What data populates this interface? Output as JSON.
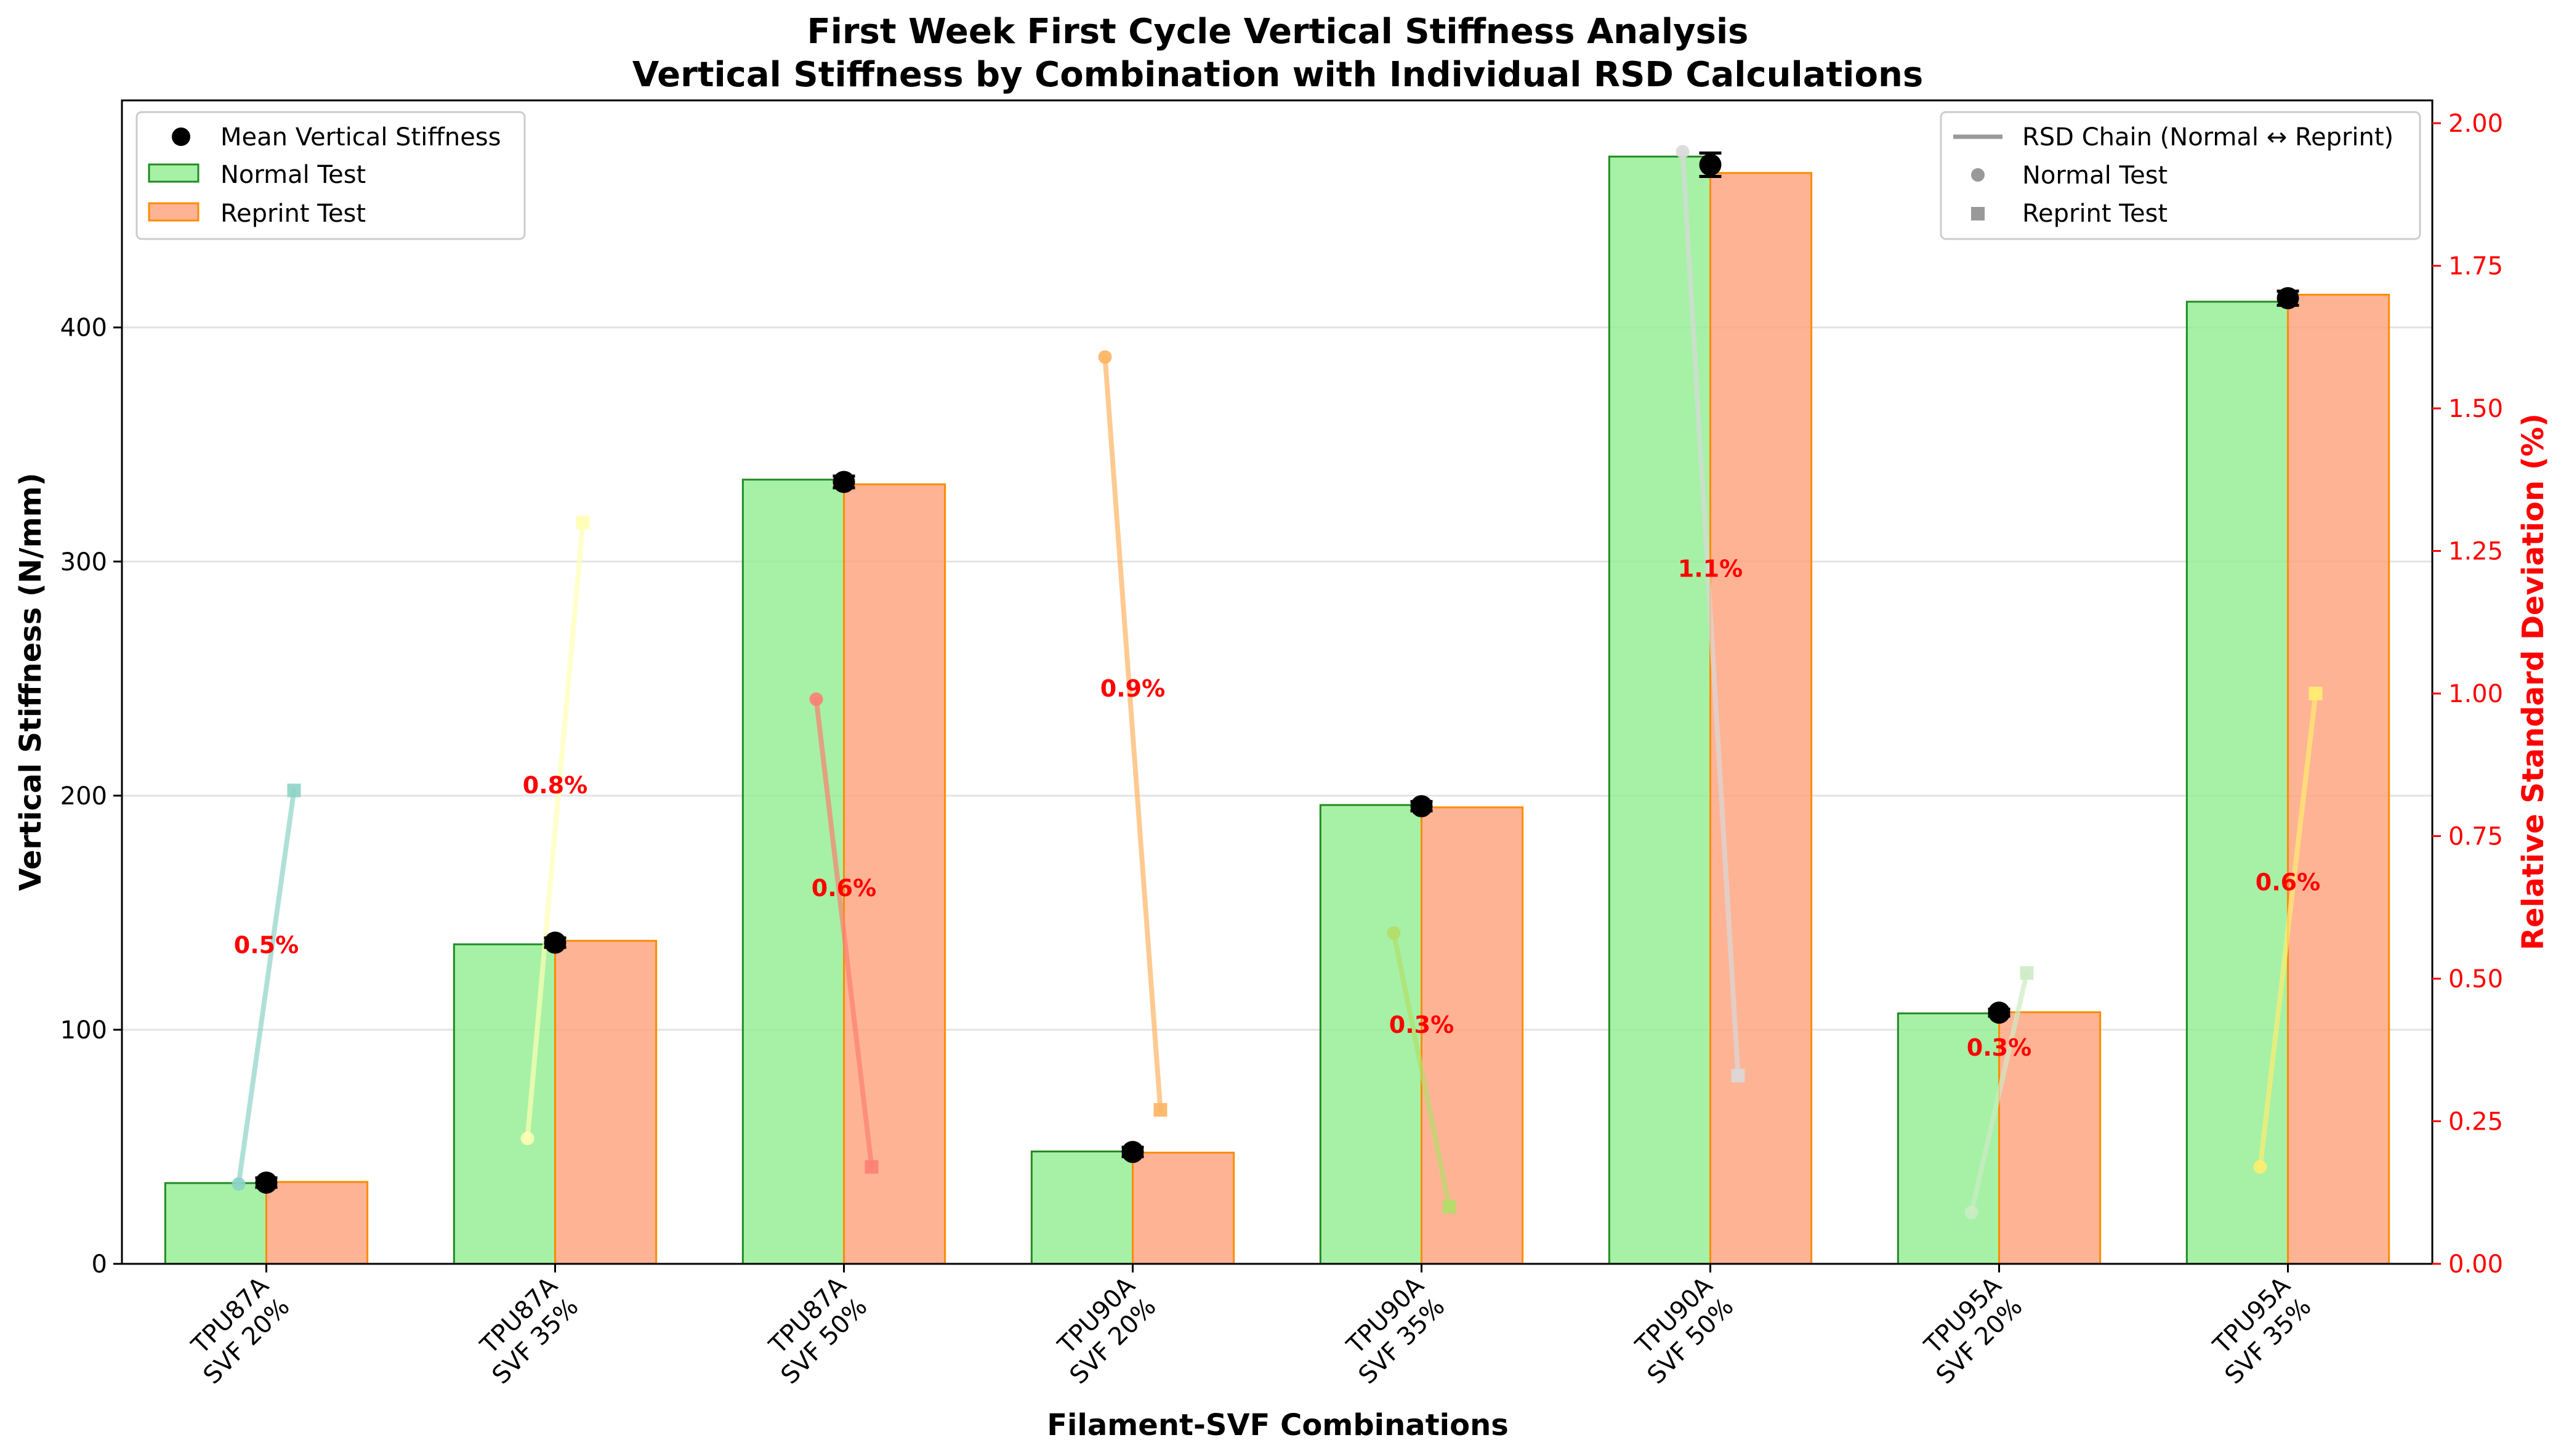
{
  "chart_data": {
    "type": "bar",
    "title": "First Week First Cycle Vertical Stiffness Analysis",
    "subtitle": "Vertical Stiffness by Combination with Individual RSD Calculations",
    "xlabel": "Filament-SVF Combinations",
    "ylabel": "Vertical Stiffness (N/mm)",
    "y2label": "Relative Standard Deviation (%)",
    "ylim": [
      0,
      497
    ],
    "y2lim": [
      0,
      2.04
    ],
    "yticks": [
      0,
      100,
      200,
      300,
      400
    ],
    "y2ticks": [
      "0.00",
      "0.25",
      "0.50",
      "0.75",
      "1.00",
      "1.25",
      "1.50",
      "1.75",
      "2.00"
    ],
    "grid": "horizontal",
    "categories": [
      [
        "TPU87A",
        "SVF 20%"
      ],
      [
        "TPU87A",
        "SVF 35%"
      ],
      [
        "TPU87A",
        "SVF 50%"
      ],
      [
        "TPU90A",
        "SVF 20%"
      ],
      [
        "TPU90A",
        "SVF 35%"
      ],
      [
        "TPU90A",
        "SVF 50%"
      ],
      [
        "TPU95A",
        "SVF 20%"
      ],
      [
        "TPU95A",
        "SVF 35%"
      ]
    ],
    "series": [
      {
        "name": "Normal Test",
        "values": [
          34.5,
          136.5,
          335,
          48,
          196,
          473,
          107,
          411
        ],
        "color": "#90ee90",
        "edge": "#228b22"
      },
      {
        "name": "Reprint Test",
        "values": [
          35,
          138,
          333,
          47.5,
          195,
          466,
          107.5,
          414
        ],
        "color": "#ffa07a",
        "edge": "#ff8c00"
      }
    ],
    "mean": {
      "name": "Mean Vertical Stiffness",
      "values": [
        34.7,
        137.2,
        334,
        47.8,
        195.5,
        469.5,
        107.3,
        412.5
      ],
      "errors": [
        2,
        2,
        2.5,
        2,
        2,
        5,
        1.5,
        3
      ]
    },
    "rsd_chains": {
      "legend": [
        "RSD Chain (Normal ↔ Reprint)",
        "Normal Test",
        "Reprint Test"
      ],
      "normal": [
        0.14,
        0.22,
        0.99,
        1.59,
        0.58,
        1.95,
        0.09,
        0.17
      ],
      "reprint": [
        0.83,
        1.3,
        0.17,
        0.27,
        0.1,
        0.33,
        0.51,
        1.0
      ],
      "colors": [
        "#8dd3c7",
        "#ffffb3",
        "#fb8072",
        "#fdb462",
        "#b3de69",
        "#d9d9d9",
        "#ccebc5",
        "#ffed6f"
      ]
    },
    "rsd_labels": [
      {
        "text": "0.5%",
        "y": 0.56
      },
      {
        "text": "0.8%",
        "y": 0.84
      },
      {
        "text": "0.6%",
        "y": 0.66
      },
      {
        "text": "0.9%",
        "y": 1.01
      },
      {
        "text": "0.3%",
        "y": 0.42
      },
      {
        "text": "1.1%",
        "y": 1.22
      },
      {
        "text": "0.3%",
        "y": 0.38
      },
      {
        "text": "0.6%",
        "y": 0.67
      }
    ]
  }
}
